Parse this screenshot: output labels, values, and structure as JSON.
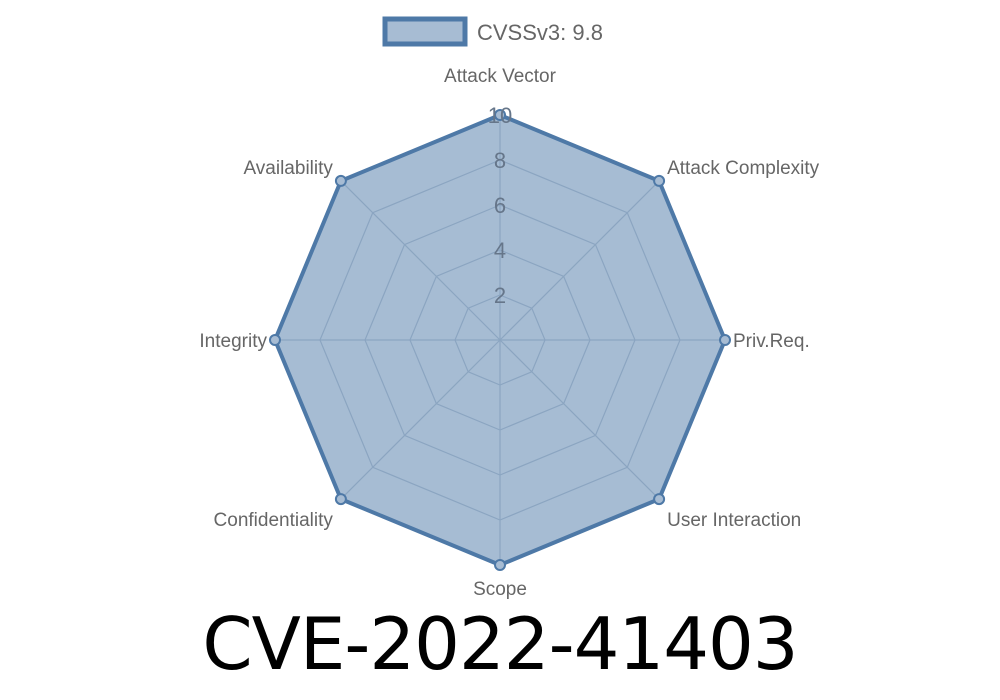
{
  "chart_data": {
    "type": "radar",
    "title": "CVE-2022-41403",
    "categories": [
      "Attack Vector",
      "Attack Complexity",
      "Priv.Req.",
      "User Interaction",
      "Scope",
      "Confidentiality",
      "Integrity",
      "Availability"
    ],
    "series": [
      {
        "name": "CVSSv3: 9.8",
        "values": [
          10,
          10,
          10,
          10,
          10,
          10,
          10,
          10
        ],
        "color": "#4e79a7"
      }
    ],
    "rlim": [
      0,
      10
    ],
    "ticks": [
      "2",
      "4",
      "6",
      "8",
      "10"
    ],
    "grid": true,
    "legend": "top"
  }
}
